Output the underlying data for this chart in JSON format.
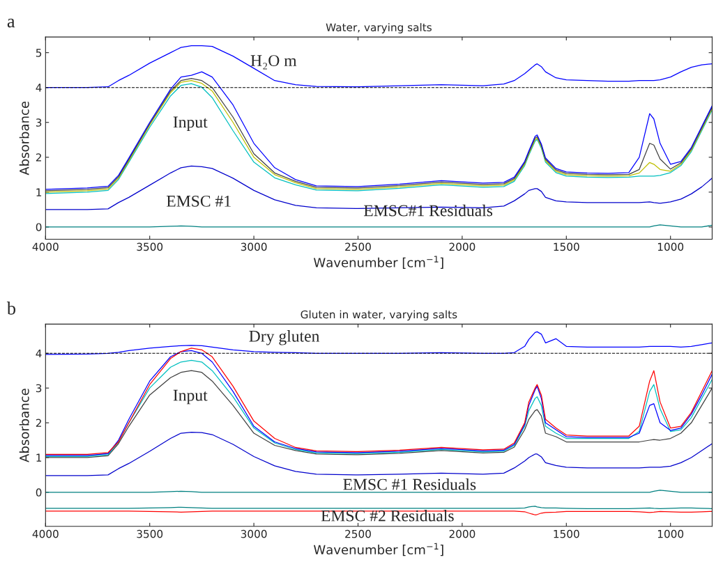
{
  "chart_data": [
    {
      "type": "line",
      "title": "Water, varying salts",
      "xlabel": "Wavenumber [cm$^{−1}$]",
      "ylabel": "Absorbance",
      "annotations": [
        "a",
        "H₂O m",
        "Input",
        "EMSC #1",
        "EMSC#1 Residuals"
      ],
      "x": [
        4000,
        3800,
        3700,
        3650,
        3600,
        3500,
        3400,
        3350,
        3300,
        3250,
        3200,
        3100,
        3000,
        2900,
        2800,
        2700,
        2500,
        2300,
        2100,
        1900,
        1800,
        1750,
        1700,
        1680,
        1650,
        1640,
        1620,
        1600,
        1550,
        1500,
        1400,
        1300,
        1200,
        1150,
        1100,
        1080,
        1050,
        1000,
        950,
        900,
        850,
        800
      ],
      "xlim": [
        4000,
        800
      ],
      "xticks": [
        4000,
        3500,
        3000,
        2500,
        2000,
        1500,
        1000
      ],
      "ylim": [
        -0.35,
        5.45
      ],
      "yticks": [
        0,
        1,
        2,
        3,
        4,
        5
      ],
      "grid": false,
      "ref_lines": [
        {
          "axis": "y",
          "value": 4,
          "color": "#000000",
          "line_style": "dashed"
        }
      ],
      "series": [
        {
          "color": "#0000ff",
          "values": [
            4.0,
            4.0,
            4.02,
            4.2,
            4.35,
            4.7,
            5.0,
            5.15,
            5.2,
            5.2,
            5.18,
            4.9,
            4.55,
            4.2,
            4.08,
            4.03,
            4.02,
            4.05,
            4.08,
            4.05,
            4.1,
            4.2,
            4.4,
            4.5,
            4.65,
            4.68,
            4.6,
            4.45,
            4.28,
            4.22,
            4.2,
            4.18,
            4.18,
            4.2,
            4.2,
            4.2,
            4.22,
            4.3,
            4.45,
            4.58,
            4.65,
            4.68
          ]
        },
        {
          "color": "#00bfbf",
          "values": [
            0.96,
            1.0,
            1.05,
            1.36,
            1.86,
            2.86,
            3.76,
            4.06,
            4.11,
            4.01,
            3.71,
            2.76,
            1.86,
            1.41,
            1.21,
            1.06,
            1.04,
            1.11,
            1.21,
            1.14,
            1.16,
            1.31,
            1.76,
            2.06,
            2.46,
            2.51,
            2.26,
            1.86,
            1.56,
            1.46,
            1.43,
            1.42,
            1.43,
            1.46,
            1.46,
            1.46,
            1.48,
            1.56,
            1.76,
            2.16,
            2.76,
            3.36
          ]
        },
        {
          "color": "#bfbf00",
          "values": [
            1.0,
            1.04,
            1.09,
            1.4,
            1.9,
            2.92,
            3.85,
            4.15,
            4.2,
            4.12,
            3.9,
            3.0,
            2.0,
            1.5,
            1.27,
            1.1,
            1.08,
            1.15,
            1.25,
            1.18,
            1.2,
            1.35,
            1.8,
            2.1,
            2.5,
            2.55,
            2.3,
            1.9,
            1.6,
            1.5,
            1.47,
            1.46,
            1.47,
            1.55,
            1.85,
            1.8,
            1.65,
            1.6,
            1.8,
            2.2,
            2.8,
            3.4
          ]
        },
        {
          "color": "#404040",
          "values": [
            1.04,
            1.08,
            1.13,
            1.44,
            1.94,
            2.96,
            3.9,
            4.2,
            4.26,
            4.2,
            4.0,
            3.15,
            2.1,
            1.55,
            1.31,
            1.14,
            1.12,
            1.19,
            1.29,
            1.22,
            1.24,
            1.39,
            1.84,
            2.14,
            2.55,
            2.59,
            2.34,
            1.94,
            1.64,
            1.54,
            1.51,
            1.5,
            1.51,
            1.65,
            2.4,
            2.35,
            1.95,
            1.66,
            1.84,
            2.24,
            2.84,
            3.44
          ]
        },
        {
          "color": "#0000ff",
          "values": [
            1.08,
            1.12,
            1.17,
            1.48,
            1.98,
            3.0,
            3.95,
            4.3,
            4.35,
            4.45,
            4.3,
            3.5,
            2.4,
            1.7,
            1.36,
            1.18,
            1.16,
            1.23,
            1.33,
            1.26,
            1.28,
            1.43,
            1.88,
            2.18,
            2.6,
            2.64,
            2.38,
            1.98,
            1.68,
            1.58,
            1.55,
            1.54,
            1.56,
            2.0,
            3.25,
            3.1,
            2.4,
            1.8,
            1.88,
            2.28,
            2.88,
            3.48
          ]
        },
        {
          "color": "#0000cc",
          "values": [
            0.5,
            0.5,
            0.52,
            0.7,
            0.85,
            1.2,
            1.55,
            1.7,
            1.75,
            1.73,
            1.68,
            1.4,
            1.05,
            0.78,
            0.62,
            0.55,
            0.53,
            0.55,
            0.57,
            0.55,
            0.6,
            0.75,
            0.95,
            1.05,
            1.1,
            1.1,
            1.02,
            0.85,
            0.75,
            0.72,
            0.7,
            0.7,
            0.7,
            0.7,
            0.72,
            0.7,
            0.68,
            0.72,
            0.8,
            0.95,
            1.15,
            1.4
          ]
        },
        {
          "color": "#008080",
          "values": [
            0,
            0,
            0,
            0,
            0,
            0,
            0.02,
            0.03,
            0.02,
            0,
            0,
            0,
            0,
            0,
            0,
            0,
            0,
            0,
            0,
            0,
            0,
            0,
            0,
            0,
            0,
            0,
            0,
            0,
            0,
            0,
            0,
            0,
            0,
            0,
            0,
            0.03,
            0.06,
            0.03,
            0,
            0,
            0,
            0.05
          ]
        }
      ]
    },
    {
      "type": "line",
      "title": "Gluten in water, varying salts",
      "xlabel": "Wavenumber [cm$^{−1}$]",
      "ylabel": "Absorbance",
      "annotations": [
        "b",
        "Dry gluten",
        "Input",
        "EMSC #1 Residuals",
        "EMSC #2 Residuals"
      ],
      "x": [
        4000,
        3800,
        3700,
        3650,
        3600,
        3500,
        3400,
        3350,
        3300,
        3250,
        3200,
        3100,
        3000,
        2900,
        2800,
        2700,
        2500,
        2300,
        2100,
        1900,
        1800,
        1750,
        1700,
        1680,
        1650,
        1640,
        1620,
        1600,
        1550,
        1500,
        1400,
        1300,
        1200,
        1150,
        1100,
        1080,
        1050,
        1000,
        950,
        900,
        850,
        800
      ],
      "xlim": [
        4000,
        800
      ],
      "xticks": [
        4000,
        3500,
        3000,
        2500,
        2000,
        1500,
        1000
      ],
      "ylim": [
        -0.98,
        4.84
      ],
      "yticks": [
        0,
        1,
        2,
        3,
        4
      ],
      "grid": false,
      "ref_lines": [
        {
          "axis": "y",
          "value": 4,
          "color": "#000000",
          "line_style": "dashed"
        }
      ],
      "series": [
        {
          "color": "#0000ff",
          "values": [
            3.97,
            3.98,
            4.0,
            4.03,
            4.08,
            4.15,
            4.2,
            4.22,
            4.23,
            4.22,
            4.18,
            4.1,
            4.05,
            4.03,
            4.02,
            4.0,
            4.0,
            4.0,
            4.02,
            4.0,
            4.0,
            4.02,
            4.2,
            4.4,
            4.6,
            4.62,
            4.55,
            4.3,
            4.42,
            4.2,
            4.18,
            4.18,
            4.18,
            4.18,
            4.2,
            4.2,
            4.2,
            4.2,
            4.18,
            4.2,
            4.25,
            4.3
          ]
        },
        {
          "color": "#404040",
          "values": [
            1.0,
            1.0,
            1.05,
            1.4,
            1.9,
            2.8,
            3.3,
            3.45,
            3.5,
            3.45,
            3.2,
            2.5,
            1.7,
            1.35,
            1.2,
            1.1,
            1.08,
            1.12,
            1.2,
            1.13,
            1.15,
            1.3,
            1.8,
            2.1,
            2.35,
            2.38,
            2.2,
            1.7,
            1.6,
            1.45,
            1.45,
            1.45,
            1.45,
            1.45,
            1.5,
            1.52,
            1.5,
            1.55,
            1.7,
            2.0,
            2.5,
            3.0
          ]
        },
        {
          "color": "#00bfbf",
          "values": [
            1.03,
            1.03,
            1.08,
            1.45,
            2.0,
            3.0,
            3.6,
            3.75,
            3.8,
            3.75,
            3.5,
            2.75,
            1.85,
            1.42,
            1.23,
            1.13,
            1.11,
            1.15,
            1.23,
            1.16,
            1.18,
            1.35,
            1.9,
            2.35,
            2.7,
            2.75,
            2.5,
            1.9,
            1.7,
            1.55,
            1.55,
            1.55,
            1.55,
            1.75,
            2.9,
            3.1,
            2.4,
            1.75,
            1.8,
            2.15,
            2.7,
            3.25
          ]
        },
        {
          "color": "#0000ff",
          "values": [
            1.06,
            1.06,
            1.11,
            1.5,
            2.1,
            3.2,
            3.9,
            4.05,
            4.08,
            4.0,
            3.75,
            2.9,
            1.9,
            1.45,
            1.26,
            1.16,
            1.14,
            1.18,
            1.26,
            1.19,
            1.21,
            1.38,
            1.95,
            2.5,
            2.95,
            3.05,
            2.7,
            2.0,
            1.8,
            1.6,
            1.58,
            1.58,
            1.58,
            1.7,
            2.5,
            2.55,
            2.0,
            1.78,
            1.85,
            2.25,
            2.8,
            3.4
          ]
        },
        {
          "color": "#ff0000",
          "values": [
            1.09,
            1.09,
            1.14,
            1.45,
            2.0,
            3.1,
            3.85,
            4.05,
            4.15,
            4.1,
            3.9,
            3.05,
            2.05,
            1.55,
            1.29,
            1.19,
            1.17,
            1.21,
            1.29,
            1.22,
            1.24,
            1.42,
            2.0,
            2.6,
            3.0,
            3.1,
            2.8,
            2.1,
            1.85,
            1.65,
            1.62,
            1.62,
            1.62,
            1.9,
            3.2,
            3.5,
            2.6,
            1.85,
            1.9,
            2.3,
            2.9,
            3.5
          ]
        },
        {
          "color": "#0000cc",
          "values": [
            0.48,
            0.48,
            0.5,
            0.68,
            0.83,
            1.18,
            1.55,
            1.7,
            1.73,
            1.72,
            1.66,
            1.38,
            1.03,
            0.76,
            0.6,
            0.52,
            0.5,
            0.52,
            0.55,
            0.52,
            0.55,
            0.7,
            0.9,
            1.0,
            1.1,
            1.1,
            1.02,
            0.85,
            0.77,
            0.72,
            0.7,
            0.7,
            0.7,
            0.7,
            0.72,
            0.72,
            0.72,
            0.75,
            0.85,
            1.0,
            1.2,
            1.4
          ]
        },
        {
          "color": "#008080",
          "values": [
            0,
            0,
            0,
            0,
            0,
            0,
            0.02,
            0.03,
            0.02,
            0,
            0,
            0,
            0,
            0,
            0,
            0,
            0,
            0,
            0,
            0,
            0,
            0,
            0,
            0,
            0,
            0,
            0,
            0,
            0,
            0,
            0,
            0,
            0,
            0,
            0,
            0.03,
            0.06,
            0.03,
            0,
            0,
            0,
            0
          ]
        },
        {
          "color": "#008080",
          "values": [
            -0.46,
            -0.46,
            -0.46,
            -0.46,
            -0.46,
            -0.45,
            -0.44,
            -0.43,
            -0.44,
            -0.45,
            -0.46,
            -0.46,
            -0.46,
            -0.46,
            -0.46,
            -0.46,
            -0.46,
            -0.46,
            -0.46,
            -0.46,
            -0.46,
            -0.46,
            -0.45,
            -0.42,
            -0.4,
            -0.42,
            -0.44,
            -0.45,
            -0.45,
            -0.46,
            -0.47,
            -0.47,
            -0.47,
            -0.46,
            -0.45,
            -0.46,
            -0.47,
            -0.46,
            -0.45,
            -0.45,
            -0.46,
            -0.47
          ]
        },
        {
          "color": "#ff0000",
          "values": [
            -0.54,
            -0.54,
            -0.54,
            -0.54,
            -0.54,
            -0.55,
            -0.56,
            -0.57,
            -0.56,
            -0.55,
            -0.54,
            -0.54,
            -0.54,
            -0.54,
            -0.54,
            -0.54,
            -0.54,
            -0.54,
            -0.54,
            -0.54,
            -0.54,
            -0.54,
            -0.56,
            -0.6,
            -0.65,
            -0.64,
            -0.6,
            -0.58,
            -0.57,
            -0.55,
            -0.55,
            -0.55,
            -0.55,
            -0.56,
            -0.58,
            -0.57,
            -0.55,
            -0.56,
            -0.57,
            -0.57,
            -0.56,
            -0.55
          ]
        }
      ]
    }
  ]
}
